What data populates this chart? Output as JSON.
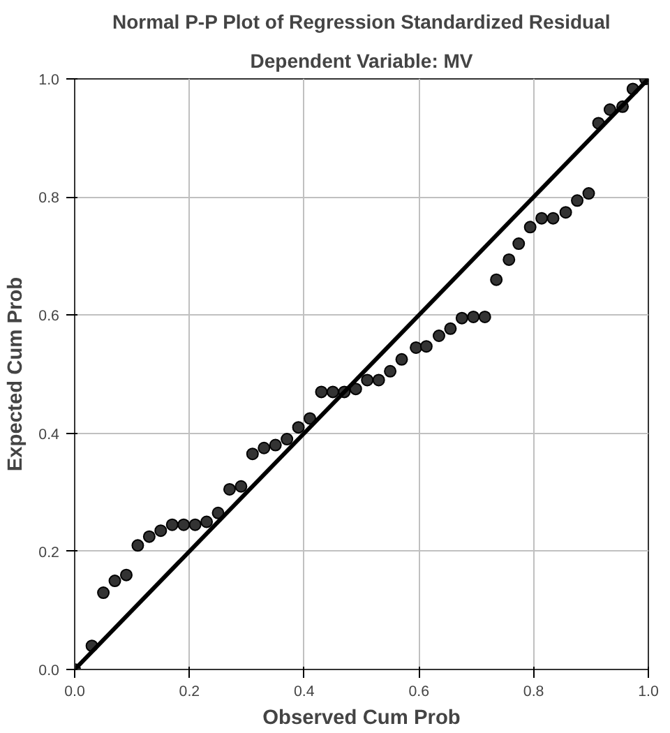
{
  "chart_data": {
    "type": "scatter",
    "title": "Normal P-P Plot of Regression Standardized Residual",
    "subtitle": "Dependent Variable: MV",
    "xlabel": "Observed Cum Prob",
    "ylabel": "Expected Cum Prob",
    "xlim": [
      0,
      1
    ],
    "ylim": [
      0,
      1
    ],
    "xticks": [
      {
        "value": 0,
        "label": "0.0"
      },
      {
        "value": 0.2,
        "label": "0.2"
      },
      {
        "value": 0.4,
        "label": "0.4"
      },
      {
        "value": 0.6,
        "label": "0.6"
      },
      {
        "value": 0.8,
        "label": "0.8"
      },
      {
        "value": 1,
        "label": "1.0"
      }
    ],
    "yticks": [
      {
        "value": 0,
        "label": "0.0"
      },
      {
        "value": 0.2,
        "label": "0.2"
      },
      {
        "value": 0.4,
        "label": "0.4"
      },
      {
        "value": 0.6,
        "label": "0.6"
      },
      {
        "value": 0.8,
        "label": "0.8"
      },
      {
        "value": 1,
        "label": "1.0"
      }
    ],
    "grid": true,
    "marker": "circle",
    "series": [
      {
        "color": "#333333",
        "x": [
          0.0,
          0.03,
          0.05,
          0.07,
          0.09,
          0.11,
          0.13,
          0.15,
          0.17,
          0.19,
          0.21,
          0.23,
          0.25,
          0.27,
          0.29,
          0.31,
          0.33,
          0.35,
          0.37,
          0.39,
          0.41,
          0.43,
          0.45,
          0.47,
          0.49,
          0.51,
          0.53,
          0.55,
          0.57,
          0.595,
          0.613,
          0.635,
          0.655,
          0.675,
          0.695,
          0.715,
          0.735,
          0.757,
          0.774,
          0.794,
          0.814,
          0.834,
          0.856,
          0.876,
          0.896,
          0.913,
          0.933,
          0.955,
          0.973,
          0.995
        ],
        "values": [
          0.0,
          0.04,
          0.13,
          0.15,
          0.16,
          0.21,
          0.225,
          0.235,
          0.245,
          0.245,
          0.245,
          0.25,
          0.265,
          0.305,
          0.31,
          0.365,
          0.375,
          0.38,
          0.39,
          0.41,
          0.425,
          0.47,
          0.47,
          0.47,
          0.475,
          0.49,
          0.49,
          0.505,
          0.525,
          0.545,
          0.547,
          0.565,
          0.577,
          0.595,
          0.597,
          0.597,
          0.66,
          0.694,
          0.721,
          0.749,
          0.764,
          0.764,
          0.774,
          0.794,
          0.806,
          0.925,
          0.948,
          0.953,
          0.983,
          1.0
        ]
      },
      {
        "type": "line",
        "marker": "none",
        "color": "#000000",
        "x": [
          0,
          1
        ],
        "values": [
          0,
          1
        ]
      }
    ]
  }
}
